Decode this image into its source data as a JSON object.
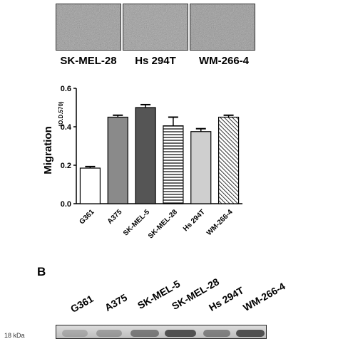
{
  "top_labels": [
    "SK-MEL-28",
    "Hs 294T",
    "WM-266-4"
  ],
  "chart_data": {
    "type": "bar",
    "categories": [
      "G361",
      "A375",
      "SK-MEL-5",
      "SK-MEL-28",
      "Hs 294T",
      "WM-266-4"
    ],
    "values": [
      0.185,
      0.45,
      0.5,
      0.405,
      0.375,
      0.45
    ],
    "errors": [
      0.008,
      0.01,
      0.015,
      0.045,
      0.015,
      0.01
    ],
    "ylabel": "Migration",
    "ylabel_unit": "(O.D.570)",
    "ylim": [
      0,
      0.6
    ],
    "yticks": [
      "0.0",
      "0.2",
      "0.4",
      "0.6"
    ],
    "bar_fills": [
      "white",
      "mid-gray",
      "dark-gray",
      "horizontal-stripes",
      "light-gray",
      "diagonal-hatch"
    ]
  },
  "panel_b": {
    "letter": "B",
    "lanes": [
      "G361",
      "A375",
      "SK-MEL-5",
      "SK-MEL-28",
      "Hs 294T",
      "WM-266-4"
    ],
    "marker": "18 kDa"
  },
  "colors": {
    "bar_stroke": "#000000",
    "mid_gray": "#8a8a8a",
    "dark_gray": "#555555",
    "light_gray": "#cfcfcf"
  }
}
